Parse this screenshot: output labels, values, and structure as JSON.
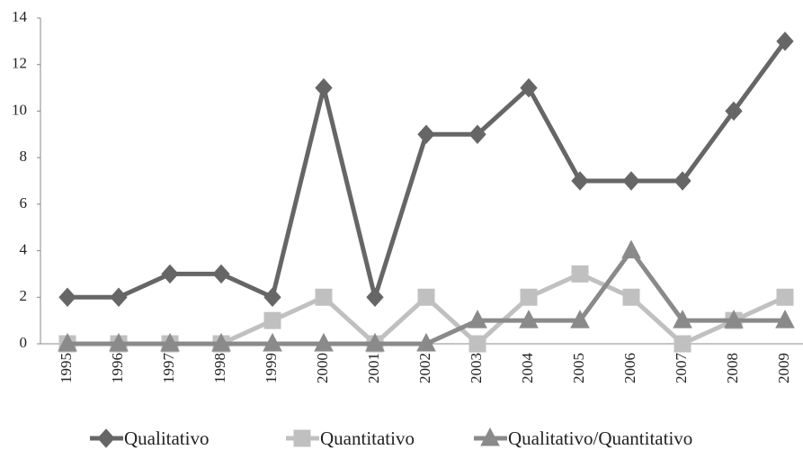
{
  "chart_data": {
    "type": "line",
    "categories": [
      "1995",
      "1996",
      "1997",
      "1998",
      "1999",
      "2000",
      "2001",
      "2002",
      "2003",
      "2004",
      "2005",
      "2006",
      "2007",
      "2008",
      "2009"
    ],
    "series": [
      {
        "name": "Qualitativo",
        "color": "#666666",
        "marker": "diamond",
        "values": [
          2,
          2,
          3,
          3,
          2,
          11,
          2,
          9,
          9,
          11,
          7,
          7,
          7,
          10,
          13
        ]
      },
      {
        "name": "Quantitativo",
        "color": "#c0c0c0",
        "marker": "square",
        "values": [
          0,
          0,
          0,
          0,
          1,
          2,
          0,
          2,
          0,
          2,
          3,
          2,
          0,
          1,
          2
        ]
      },
      {
        "name": "Qualitativo/Quantitativo",
        "color": "#8a8a8a",
        "marker": "triangle",
        "values": [
          0,
          0,
          0,
          0,
          0,
          0,
          0,
          0,
          1,
          1,
          1,
          4,
          1,
          1,
          1
        ]
      }
    ],
    "ylim": [
      0,
      14
    ],
    "yticks": [
      0,
      2,
      4,
      6,
      8,
      10,
      12,
      14
    ],
    "grid": false,
    "legend": "bottom"
  }
}
